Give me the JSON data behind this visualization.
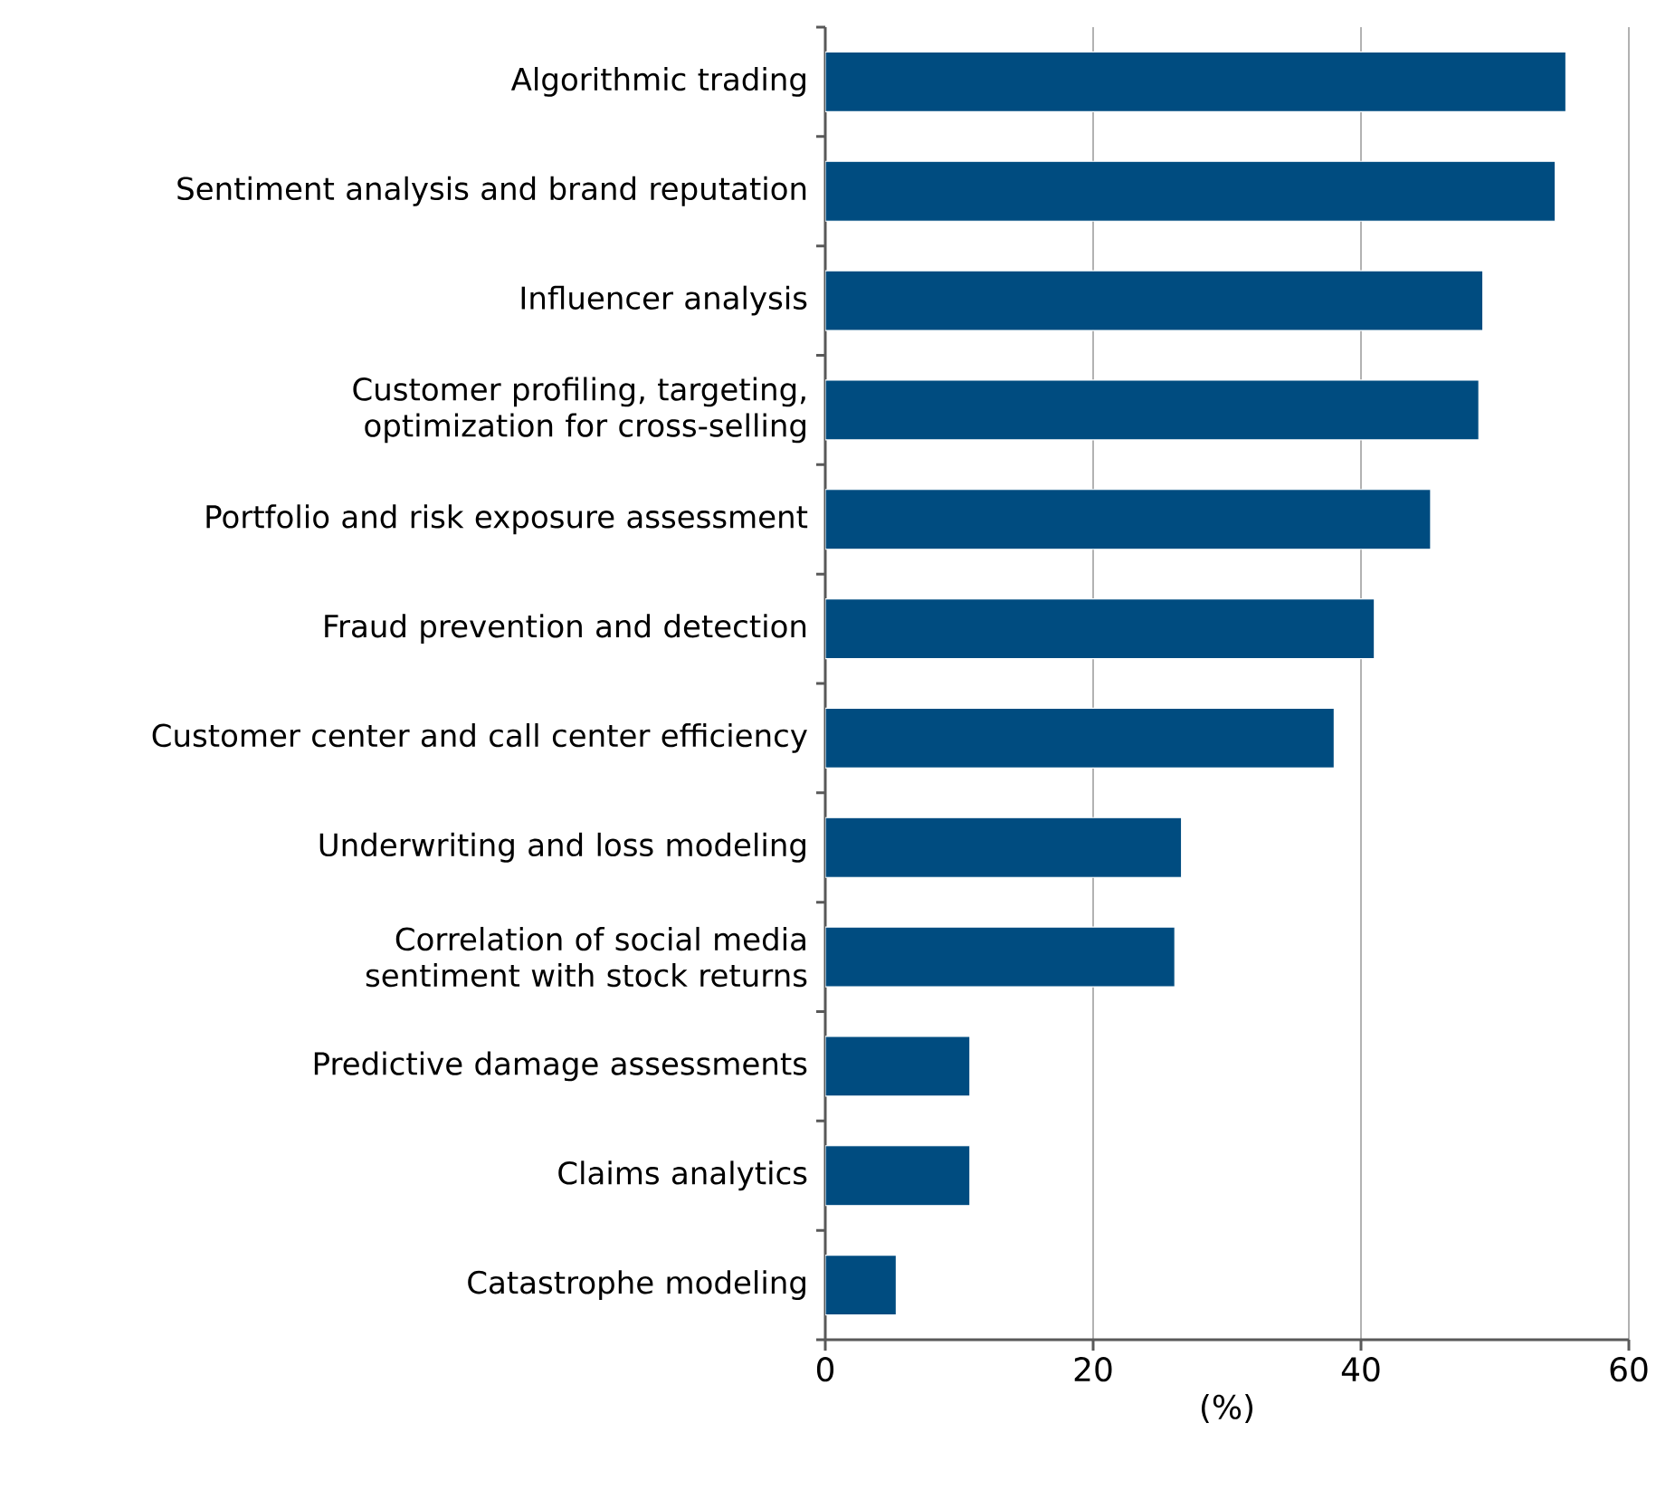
{
  "chart_data": {
    "type": "bar",
    "orientation": "horizontal",
    "xlabel": "(%)",
    "categories": [
      "Algorithmic trading",
      "Sentiment analysis and brand reputation",
      "Influencer analysis",
      "Customer profiling, targeting, optimization for cross-selling",
      "Portfolio and risk exposure assessment",
      "Fraud prevention and detection",
      "Customer center and call center efficiency",
      "Underwriting and loss modeling",
      "Correlation of social media sentiment with stock returns",
      "Predictive damage assessments",
      "Claims analytics",
      "Catastrophe modeling"
    ],
    "values": [
      55.3,
      54.5,
      49.1,
      48.8,
      45.2,
      41.0,
      38.0,
      26.6,
      26.1,
      10.8,
      10.8,
      5.3
    ],
    "color": "#004c80",
    "xlim": [
      0,
      60
    ],
    "xticks": [
      0,
      20,
      40,
      60
    ],
    "grid": "x"
  }
}
